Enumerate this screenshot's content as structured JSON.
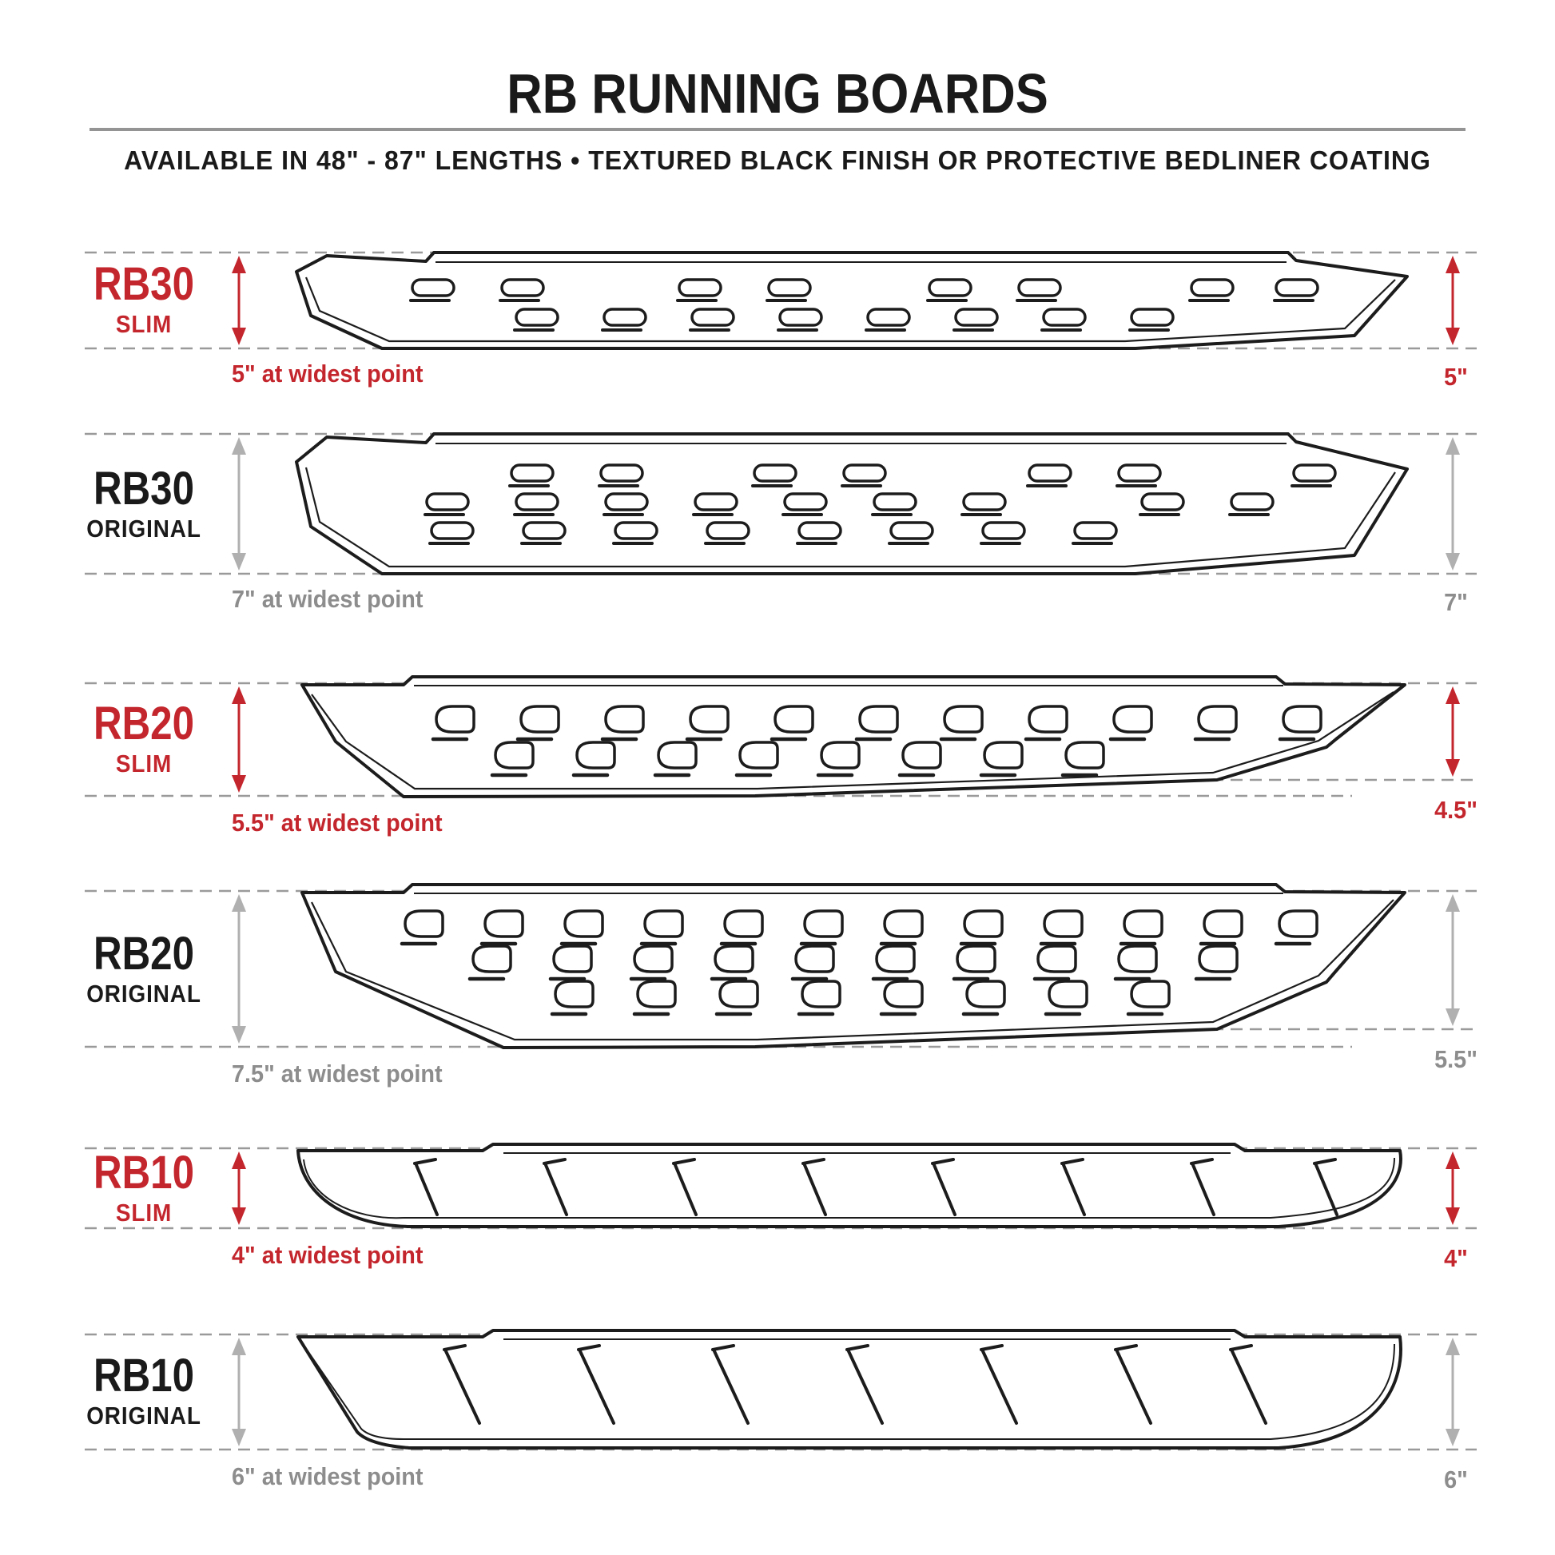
{
  "header": {
    "title": "RB RUNNING BOARDS",
    "subtitle": "AVAILABLE IN 48\" - 87\" LENGTHS  •  TEXTURED BLACK FINISH OR PROTECTIVE BEDLINER COATING"
  },
  "colors": {
    "accent_red": "#c4262d",
    "text_black": "#1a1a1a",
    "text_gray": "#8d8d8d",
    "arrow_gray": "#b0b0b0",
    "dashed_line": "#9a9a9a",
    "outline_black": "#1c1c1c"
  },
  "rows": [
    {
      "model": "RB30",
      "variant": "SLIM",
      "accent": "red",
      "left_note": "5\" at widest point",
      "right_note": "5\""
    },
    {
      "model": "RB30",
      "variant": "ORIGINAL",
      "accent": "black",
      "left_note": "7\" at widest point",
      "right_note": "7\""
    },
    {
      "model": "RB20",
      "variant": "SLIM",
      "accent": "red",
      "left_note": "5.5\" at widest point",
      "right_note": "4.5\""
    },
    {
      "model": "RB20",
      "variant": "ORIGINAL",
      "accent": "black",
      "left_note": "7.5\" at widest point",
      "right_note": "5.5\""
    },
    {
      "model": "RB10",
      "variant": "SLIM",
      "accent": "red",
      "left_note": "4\" at widest point",
      "right_note": "4\""
    },
    {
      "model": "RB10",
      "variant": "ORIGINAL",
      "accent": "black",
      "left_note": "6\" at widest point",
      "right_note": "6\""
    }
  ]
}
